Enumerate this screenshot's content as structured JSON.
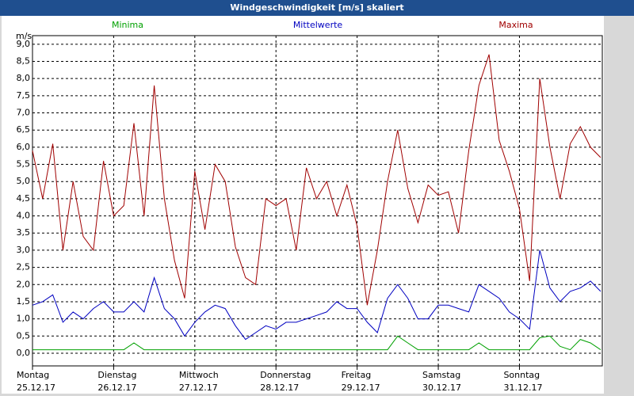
{
  "chart_data": {
    "type": "line",
    "title": "Windgeschwindigkeit [m/s] skaliert",
    "y_unit": "m/s",
    "x": [
      0,
      3,
      6,
      9,
      12,
      15,
      18,
      21,
      24,
      27,
      30,
      33,
      36,
      39,
      42,
      45,
      48,
      51,
      54,
      57,
      60,
      63,
      66,
      69,
      72,
      75,
      78,
      81,
      84,
      87,
      90,
      93,
      96,
      99,
      102,
      105,
      108,
      111,
      114,
      117,
      120,
      123,
      126,
      129,
      132,
      135,
      138,
      141,
      144,
      147,
      150,
      153,
      156,
      159,
      162,
      165,
      168
    ],
    "xlim": [
      0,
      168.5
    ],
    "xticks": [
      {
        "value": 0,
        "label": "Montag\n25.12.17"
      },
      {
        "value": 24,
        "label": "Dienstag\n26.12.17"
      },
      {
        "value": 48,
        "label": "Mittwoch\n27.12.17"
      },
      {
        "value": 72,
        "label": "Donnerstag\n28.12.17"
      },
      {
        "value": 96,
        "label": "Freitag\n29.12.17"
      },
      {
        "value": 120,
        "label": "Samstag\n30.12.17"
      },
      {
        "value": 144,
        "label": "Sonntag\n31.12.17"
      }
    ],
    "ylim": [
      -0.37,
      9.25
    ],
    "yticks": [
      {
        "value": 0,
        "label": "0,0"
      },
      {
        "value": 0.5,
        "label": "0,5"
      },
      {
        "value": 1,
        "label": "1,0"
      },
      {
        "value": 1.5,
        "label": "1,5"
      },
      {
        "value": 2,
        "label": "2,0"
      },
      {
        "value": 2.5,
        "label": "2,5"
      },
      {
        "value": 3,
        "label": "3,0"
      },
      {
        "value": 3.5,
        "label": "3,5"
      },
      {
        "value": 4,
        "label": "4,0"
      },
      {
        "value": 4.5,
        "label": "4,5"
      },
      {
        "value": 5,
        "label": "5,0"
      },
      {
        "value": 5.5,
        "label": "5,5"
      },
      {
        "value": 6,
        "label": "6,0"
      },
      {
        "value": 6.5,
        "label": "6,5"
      },
      {
        "value": 7,
        "label": "7,0"
      },
      {
        "value": 7.5,
        "label": "7,5"
      },
      {
        "value": 8,
        "label": "8,0"
      },
      {
        "value": 8.5,
        "label": "8,5"
      },
      {
        "value": 9,
        "label": "9,0"
      }
    ],
    "grid": true,
    "series": [
      {
        "name": "Minima",
        "color": "#00a000",
        "values": [
          0.1,
          0.1,
          0.1,
          0.1,
          0.1,
          0.1,
          0.1,
          0.1,
          0.1,
          0.1,
          0.3,
          0.1,
          0.1,
          0.1,
          0.1,
          0.1,
          0.1,
          0.1,
          0.1,
          0.1,
          0.1,
          0.1,
          0.1,
          0.1,
          0.1,
          0.1,
          0.1,
          0.1,
          0.1,
          0.1,
          0.1,
          0.1,
          0.1,
          0.1,
          0.1,
          0.1,
          0.5,
          0.3,
          0.1,
          0.1,
          0.1,
          0.1,
          0.1,
          0.1,
          0.3,
          0.1,
          0.1,
          0.1,
          0.1,
          0.1,
          0.45,
          0.5,
          0.2,
          0.1,
          0.4,
          0.3,
          0.1
        ]
      },
      {
        "name": "Mittelwerte",
        "color": "#0000c0",
        "values": [
          1.4,
          1.5,
          1.7,
          0.9,
          1.2,
          1.0,
          1.3,
          1.5,
          1.2,
          1.2,
          1.5,
          1.2,
          2.2,
          1.3,
          1.0,
          0.5,
          0.9,
          1.2,
          1.4,
          1.3,
          0.8,
          0.4,
          0.6,
          0.8,
          0.7,
          0.9,
          0.9,
          1.0,
          1.1,
          1.2,
          1.5,
          1.3,
          1.3,
          0.9,
          0.6,
          1.6,
          2.0,
          1.6,
          1.0,
          1.0,
          1.4,
          1.4,
          1.3,
          1.2,
          2.0,
          1.8,
          1.6,
          1.2,
          1.0,
          0.7,
          3.0,
          1.9,
          1.5,
          1.8,
          1.9,
          2.1,
          1.8
        ]
      },
      {
        "name": "Maxima",
        "color": "#a00000",
        "values": [
          5.9,
          4.5,
          6.1,
          3.0,
          5.0,
          3.4,
          3.0,
          5.6,
          4.0,
          4.3,
          6.7,
          4.0,
          7.8,
          4.5,
          2.7,
          1.6,
          5.3,
          3.6,
          5.5,
          5.0,
          3.1,
          2.2,
          2.0,
          4.5,
          4.3,
          4.5,
          3.0,
          5.4,
          4.5,
          5.0,
          4.0,
          4.9,
          3.7,
          1.4,
          3.0,
          5.0,
          6.5,
          4.8,
          3.8,
          4.9,
          4.6,
          4.7,
          3.5,
          5.9,
          7.8,
          8.7,
          6.2,
          5.3,
          4.2,
          2.1,
          8.0,
          6.0,
          4.5,
          6.1,
          6.6,
          6.0,
          5.7
        ]
      }
    ]
  }
}
